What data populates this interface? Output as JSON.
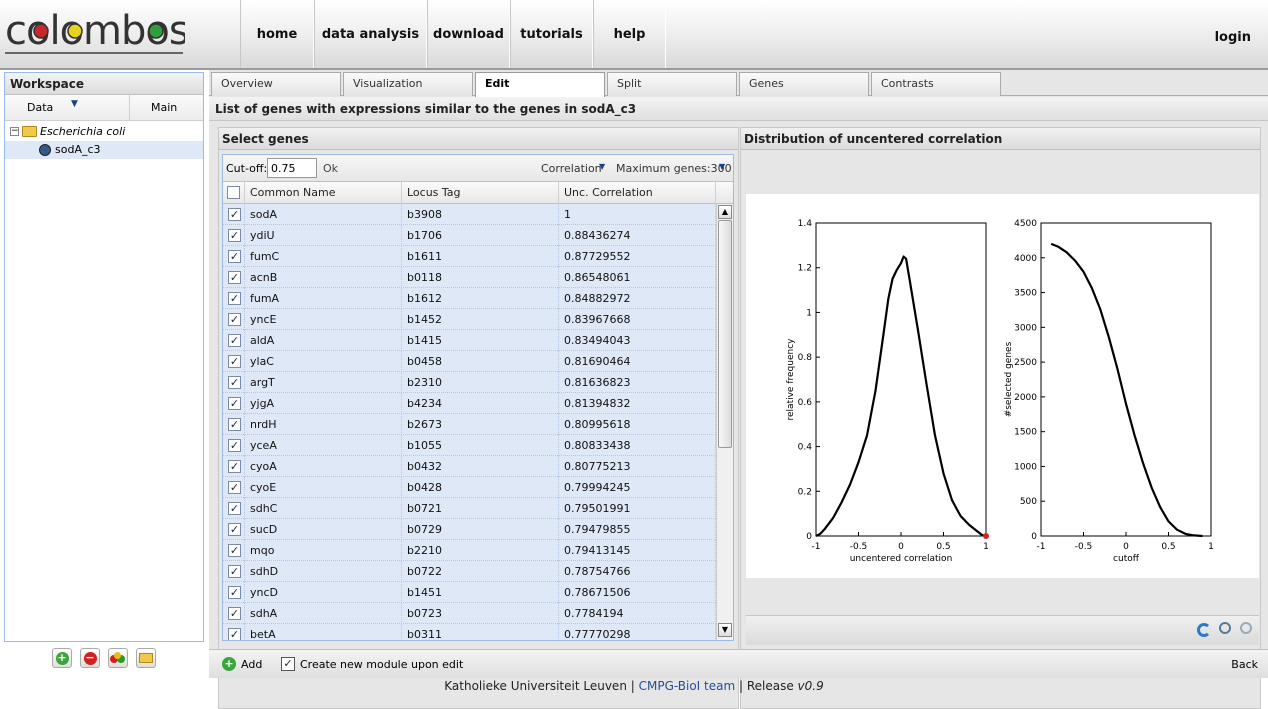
{
  "header": {
    "logo_text": "colombos",
    "nav": [
      "home",
      "data analysis",
      "download",
      "tutorials",
      "help"
    ],
    "login": "login"
  },
  "workspace": {
    "title": "Workspace",
    "col_data": "Data",
    "col_main": "Main",
    "tree": [
      {
        "label": "Escherichia coli",
        "type": "folder"
      },
      {
        "label": "sodA_c3",
        "type": "module"
      }
    ]
  },
  "tabs": [
    "Overview",
    "Visualization",
    "Edit",
    "Split",
    "Genes",
    "Contrasts"
  ],
  "active_tab": "Edit",
  "subtitle": "List of genes with expressions similar to the genes in sodA_c3",
  "select_panel": {
    "title": "Select genes",
    "cutoff_label": "Cut-off:",
    "cutoff_value": "0.75",
    "ok_label": "Ok",
    "correlation_label": "Correlation",
    "max_genes_label": "Maximum genes:300",
    "columns": [
      "Common Name",
      "Locus Tag",
      "Unc. Correlation"
    ],
    "rows": [
      [
        "sodA",
        "b3908",
        "1"
      ],
      [
        "ydiU",
        "b1706",
        "0.88436274"
      ],
      [
        "fumC",
        "b1611",
        "0.87729552"
      ],
      [
        "acnB",
        "b0118",
        "0.86548061"
      ],
      [
        "fumA",
        "b1612",
        "0.84882972"
      ],
      [
        "yncE",
        "b1452",
        "0.83967668"
      ],
      [
        "aldA",
        "b1415",
        "0.83494043"
      ],
      [
        "ylaC",
        "b0458",
        "0.81690464"
      ],
      [
        "argT",
        "b2310",
        "0.81636823"
      ],
      [
        "yjgA",
        "b4234",
        "0.81394832"
      ],
      [
        "nrdH",
        "b2673",
        "0.80995618"
      ],
      [
        "yceA",
        "b1055",
        "0.80833438"
      ],
      [
        "cyoA",
        "b0432",
        "0.80775213"
      ],
      [
        "cyoE",
        "b0428",
        "0.79994245"
      ],
      [
        "sdhC",
        "b0721",
        "0.79501991"
      ],
      [
        "sucD",
        "b0729",
        "0.79479855"
      ],
      [
        "mqo",
        "b2210",
        "0.79413145"
      ],
      [
        "sdhD",
        "b0722",
        "0.78754766"
      ],
      [
        "yncD",
        "b1451",
        "0.78671506"
      ],
      [
        "sdhA",
        "b0723",
        "0.7784194"
      ],
      [
        "betA",
        "b0311",
        "0.77770298"
      ]
    ]
  },
  "dist_panel": {
    "title": "Distribution of uncentered correlation"
  },
  "chart_data": [
    {
      "type": "line",
      "title": "",
      "xlabel": "uncentered correlation",
      "ylabel": "relative frequency",
      "xlim": [
        -1,
        1
      ],
      "ylim": [
        0,
        1.4
      ],
      "xticks": [
        -1,
        -0.5,
        0,
        0.5,
        1
      ],
      "yticks": [
        0,
        0.2,
        0.4,
        0.6,
        0.8,
        1,
        1.2,
        1.4
      ],
      "x": [
        -1,
        -0.95,
        -0.9,
        -0.8,
        -0.7,
        -0.6,
        -0.5,
        -0.4,
        -0.3,
        -0.2,
        -0.15,
        -0.1,
        -0.05,
        0,
        0.03,
        0.06,
        0.1,
        0.2,
        0.3,
        0.4,
        0.5,
        0.6,
        0.7,
        0.8,
        0.9,
        0.95,
        1
      ],
      "y": [
        0,
        0.01,
        0.03,
        0.08,
        0.15,
        0.23,
        0.33,
        0.45,
        0.65,
        0.92,
        1.06,
        1.15,
        1.19,
        1.22,
        1.25,
        1.24,
        1.15,
        0.92,
        0.68,
        0.45,
        0.28,
        0.16,
        0.09,
        0.05,
        0.02,
        0.005,
        0
      ],
      "marker": {
        "x": 1,
        "y": 0,
        "color": "#e02020"
      }
    },
    {
      "type": "line",
      "title": "",
      "xlabel": "cutoff",
      "ylabel": "#selected genes",
      "xlim": [
        -1,
        1
      ],
      "ylim": [
        0,
        4500
      ],
      "xticks": [
        -1,
        -0.5,
        0,
        0.5,
        1
      ],
      "yticks": [
        0,
        500,
        1000,
        1500,
        2000,
        2500,
        3000,
        3500,
        4000,
        4500
      ],
      "x": [
        -0.88,
        -0.8,
        -0.7,
        -0.6,
        -0.5,
        -0.4,
        -0.3,
        -0.2,
        -0.1,
        0,
        0.1,
        0.2,
        0.3,
        0.4,
        0.5,
        0.6,
        0.7,
        0.8,
        0.9
      ],
      "y": [
        4200,
        4160,
        4080,
        3960,
        3800,
        3560,
        3250,
        2850,
        2400,
        1900,
        1450,
        1050,
        700,
        420,
        210,
        90,
        30,
        8,
        0
      ]
    }
  ],
  "bottom": {
    "add_label": "Add",
    "create_module_label": "Create new module upon edit",
    "back_label": "Back"
  },
  "footer": {
    "org": "Katholieke Universiteit Leuven",
    "team": "CMPG-BioI team",
    "release_label": "Release",
    "version": "v0.9"
  }
}
